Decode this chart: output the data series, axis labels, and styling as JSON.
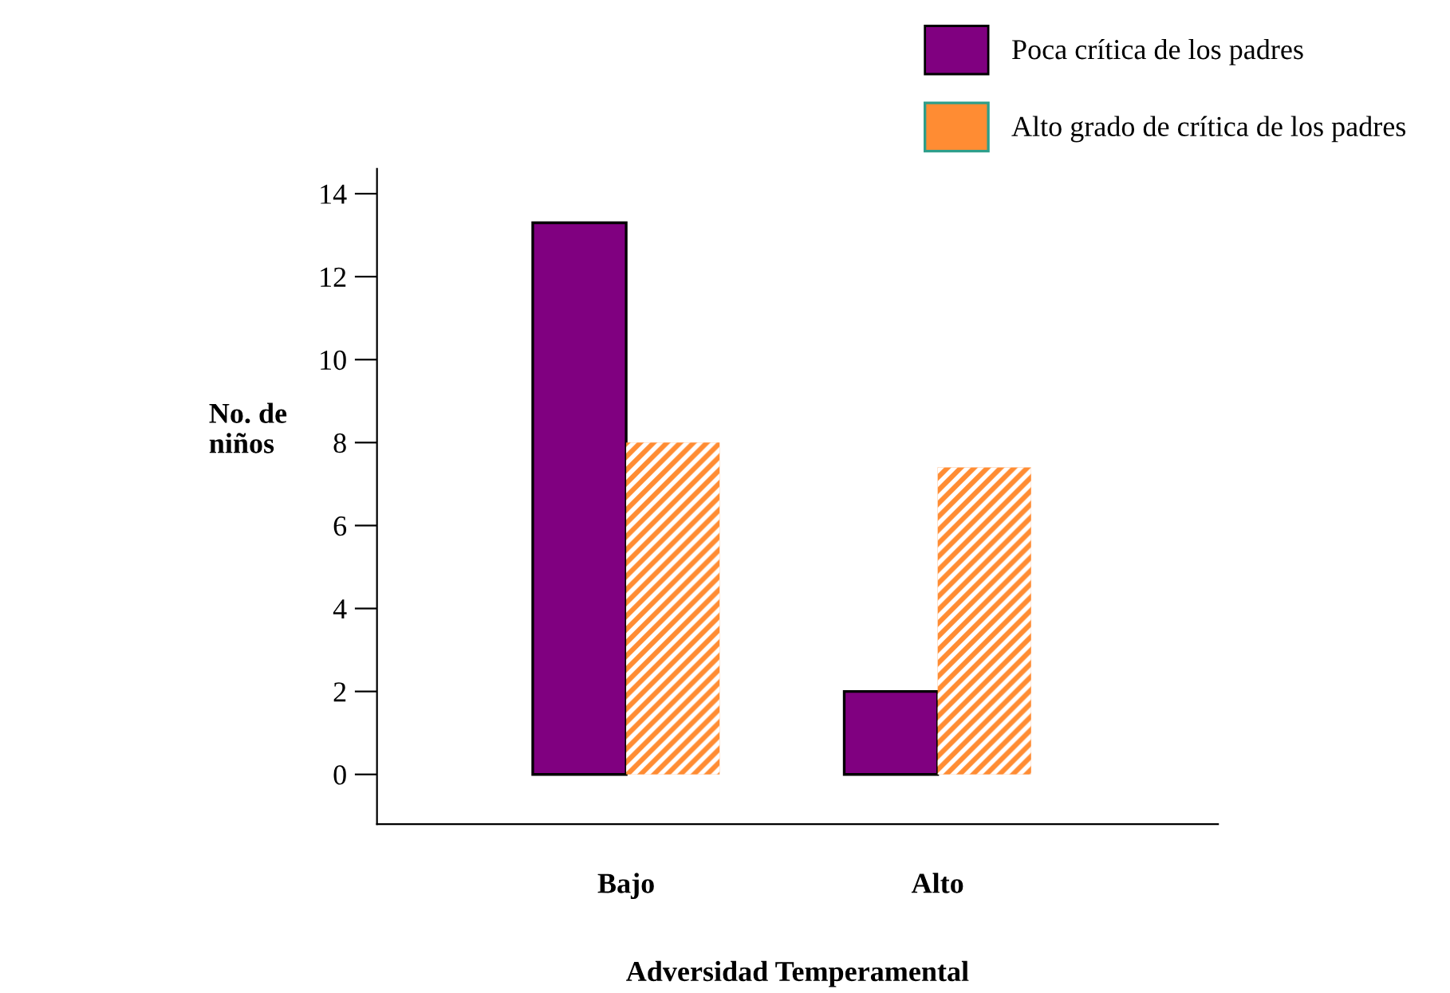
{
  "chart_data": {
    "type": "bar",
    "xlabel": "Adversidad Temperamental",
    "ylabel": "No. de\nniños",
    "categories": [
      "Bajo",
      "Alto"
    ],
    "series": [
      {
        "name": "Poca crítica de los padres",
        "color": "#800080",
        "values": [
          13.3,
          2
        ]
      },
      {
        "name": "Alto grado de crítica de los padres",
        "color": "#ff8c33",
        "values": [
          8,
          7.4
        ]
      }
    ],
    "ylim": [
      -1.2,
      14.6
    ],
    "yticks": [
      0,
      2,
      4,
      6,
      8,
      10,
      12,
      14
    ],
    "grid": false,
    "legend": "top right"
  }
}
